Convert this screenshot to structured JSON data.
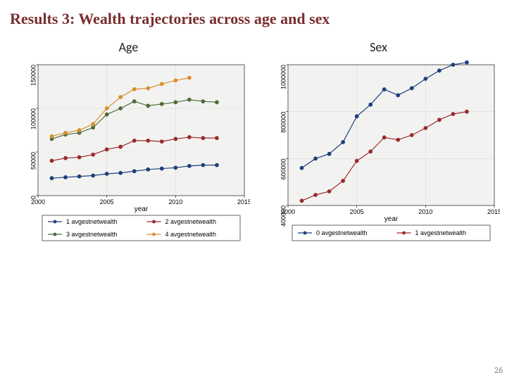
{
  "title": "Results 3: Wealth trajectories across age and sex",
  "title_color": "#7a2e2e",
  "page_number": "26",
  "background_color": "#ffffff",
  "plot_bg": "#f2f3f1",
  "grid_color": "#d8d8d8",
  "axis_color": "#000000",
  "tick_font_size": 9,
  "axis_title_font_size": 10,
  "panels": {
    "age": {
      "title": "Age",
      "x_title": "year",
      "x_min": 2000,
      "x_max": 2015,
      "x_ticks": [
        2000,
        2005,
        2010,
        2015
      ],
      "y_min": 0,
      "y_max": 150000,
      "y_ticks": [
        0,
        50000,
        100000,
        150000
      ],
      "series": [
        {
          "key": "s1",
          "label": "1 avgestnetwealth",
          "color": "#1f3f7a",
          "marker": "circle",
          "points": [
            [
              2001,
              20000
            ],
            [
              2002,
              21000
            ],
            [
              2003,
              22000
            ],
            [
              2004,
              23000
            ],
            [
              2005,
              25000
            ],
            [
              2006,
              26000
            ],
            [
              2007,
              28000
            ],
            [
              2008,
              30000
            ],
            [
              2009,
              31000
            ],
            [
              2010,
              32000
            ],
            [
              2011,
              34000
            ],
            [
              2012,
              35000
            ],
            [
              2013,
              35000
            ]
          ]
        },
        {
          "key": "s2",
          "label": "2 avgestnetwealth",
          "color": "#9a2b2b",
          "marker": "circle",
          "points": [
            [
              2001,
              40000
            ],
            [
              2002,
              43000
            ],
            [
              2003,
              44000
            ],
            [
              2004,
              47000
            ],
            [
              2005,
              53000
            ],
            [
              2006,
              56000
            ],
            [
              2007,
              63000
            ],
            [
              2008,
              63000
            ],
            [
              2009,
              62000
            ],
            [
              2010,
              65000
            ],
            [
              2011,
              67000
            ],
            [
              2012,
              66000
            ],
            [
              2013,
              66000
            ]
          ]
        },
        {
          "key": "s3",
          "label": "3 avgestnetwealth",
          "color": "#4f6d3a",
          "marker": "circle",
          "points": [
            [
              2001,
              65000
            ],
            [
              2002,
              70000
            ],
            [
              2003,
              72000
            ],
            [
              2004,
              78000
            ],
            [
              2005,
              93000
            ],
            [
              2006,
              100000
            ],
            [
              2007,
              108000
            ],
            [
              2008,
              103000
            ],
            [
              2009,
              105000
            ],
            [
              2010,
              107000
            ],
            [
              2011,
              110000
            ],
            [
              2012,
              108000
            ],
            [
              2013,
              107000
            ]
          ]
        },
        {
          "key": "s4",
          "label": "4 avgestnetwealth",
          "color": "#d98f2e",
          "marker": "circle",
          "points": [
            [
              2001,
              68000
            ],
            [
              2002,
              72000
            ],
            [
              2003,
              75000
            ],
            [
              2004,
              82000
            ],
            [
              2005,
              100000
            ],
            [
              2006,
              113000
            ],
            [
              2007,
              122000
            ],
            [
              2008,
              123000
            ],
            [
              2009,
              128000
            ],
            [
              2010,
              132000
            ],
            [
              2011,
              135000
            ]
          ]
        }
      ],
      "legend_rows": [
        [
          "s1",
          "s2"
        ],
        [
          "s3",
          "s4"
        ]
      ]
    },
    "sex": {
      "title": "Sex",
      "x_title": "year",
      "x_min": 2000,
      "x_max": 2015,
      "x_ticks": [
        2000,
        2005,
        2010,
        2015
      ],
      "y_min": 400000,
      "y_max": 1000000,
      "y_ticks": [
        400000,
        600000,
        800000,
        1000000
      ],
      "series": [
        {
          "key": "s0",
          "label": "0 avgestnetwealth",
          "color": "#1f3f7a",
          "marker": "circle",
          "points": [
            [
              2001,
              560000
            ],
            [
              2002,
              600000
            ],
            [
              2003,
              620000
            ],
            [
              2004,
              670000
            ],
            [
              2005,
              780000
            ],
            [
              2006,
              830000
            ],
            [
              2007,
              895000
            ],
            [
              2008,
              870000
            ],
            [
              2009,
              900000
            ],
            [
              2010,
              940000
            ],
            [
              2011,
              975000
            ],
            [
              2012,
              1000000
            ],
            [
              2013,
              1010000
            ]
          ]
        },
        {
          "key": "s1",
          "label": "1 avgestnetwealth",
          "color": "#9a2b2b",
          "marker": "circle",
          "points": [
            [
              2001,
              420000
            ],
            [
              2002,
              445000
            ],
            [
              2003,
              460000
            ],
            [
              2004,
              505000
            ],
            [
              2005,
              590000
            ],
            [
              2006,
              630000
            ],
            [
              2007,
              690000
            ],
            [
              2008,
              680000
            ],
            [
              2009,
              700000
            ],
            [
              2010,
              730000
            ],
            [
              2011,
              765000
            ],
            [
              2012,
              790000
            ],
            [
              2013,
              800000
            ]
          ]
        }
      ],
      "legend_rows": [
        [
          "s0",
          "s1"
        ]
      ]
    }
  }
}
